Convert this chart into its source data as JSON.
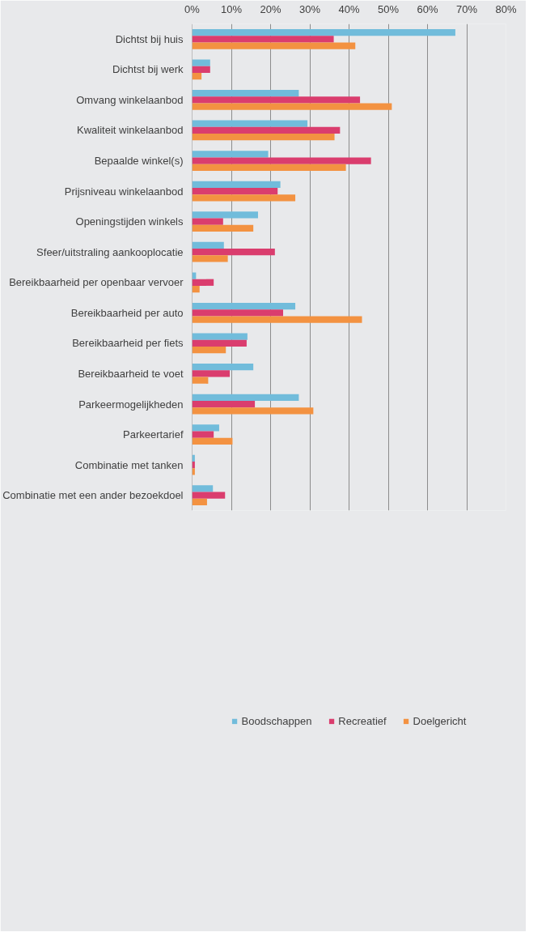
{
  "chart_data": {
    "type": "bar",
    "orientation": "horizontal",
    "categories": [
      "Dichtst bij huis",
      "Dichtst bij werk",
      "Omvang winkelaanbod",
      "Kwaliteit winkelaanbod",
      "Bepaalde winkel(s)",
      "Prijsniveau winkelaanbod",
      "Openingstijden winkels",
      "Sfeer/uitstraling aankooplocatie",
      "Bereikbaarheid per openbaar vervoer",
      "Bereikbaarheid per auto",
      "Bereikbaarheid per fiets",
      "Bereikbaarheid te voet",
      "Parkeermogelijkheden",
      "Parkeertarief",
      "Combinatie met tanken",
      "Combinatie met een ander bezoekdoel"
    ],
    "series": [
      {
        "name": "Boodschappen",
        "color": "#71bcdb",
        "values": [
          67.1,
          4.6,
          27.2,
          29.4,
          19.4,
          22.5,
          16.8,
          8.1,
          1.0,
          26.3,
          14.1,
          15.6,
          27.2,
          6.9,
          0.7,
          5.3
        ]
      },
      {
        "name": "Recreatief",
        "color": "#da3d6e",
        "values": [
          36.1,
          4.6,
          42.8,
          37.7,
          45.6,
          21.8,
          7.9,
          21.1,
          5.5,
          23.2,
          13.9,
          9.6,
          16.0,
          5.5,
          0.7,
          8.4
        ]
      },
      {
        "name": "Doelgericht",
        "color": "#f39241",
        "values": [
          41.6,
          2.4,
          50.9,
          36.3,
          39.2,
          26.3,
          15.6,
          9.1,
          1.9,
          43.3,
          8.6,
          4.1,
          30.9,
          10.3,
          0.7,
          3.8
        ]
      }
    ],
    "xlim": [
      0,
      80
    ],
    "xticks": [
      {
        "value": 0,
        "label": "0%"
      },
      {
        "value": 10,
        "label": "10%"
      },
      {
        "value": 20,
        "label": "20%"
      },
      {
        "value": 30,
        "label": "30%"
      },
      {
        "value": 40,
        "label": "40%"
      },
      {
        "value": 50,
        "label": "50%"
      },
      {
        "value": 60,
        "label": "60%"
      },
      {
        "value": 70,
        "label": "70%"
      },
      {
        "value": 80,
        "label": "80%"
      }
    ],
    "grid": "x",
    "legend": "bottom"
  }
}
